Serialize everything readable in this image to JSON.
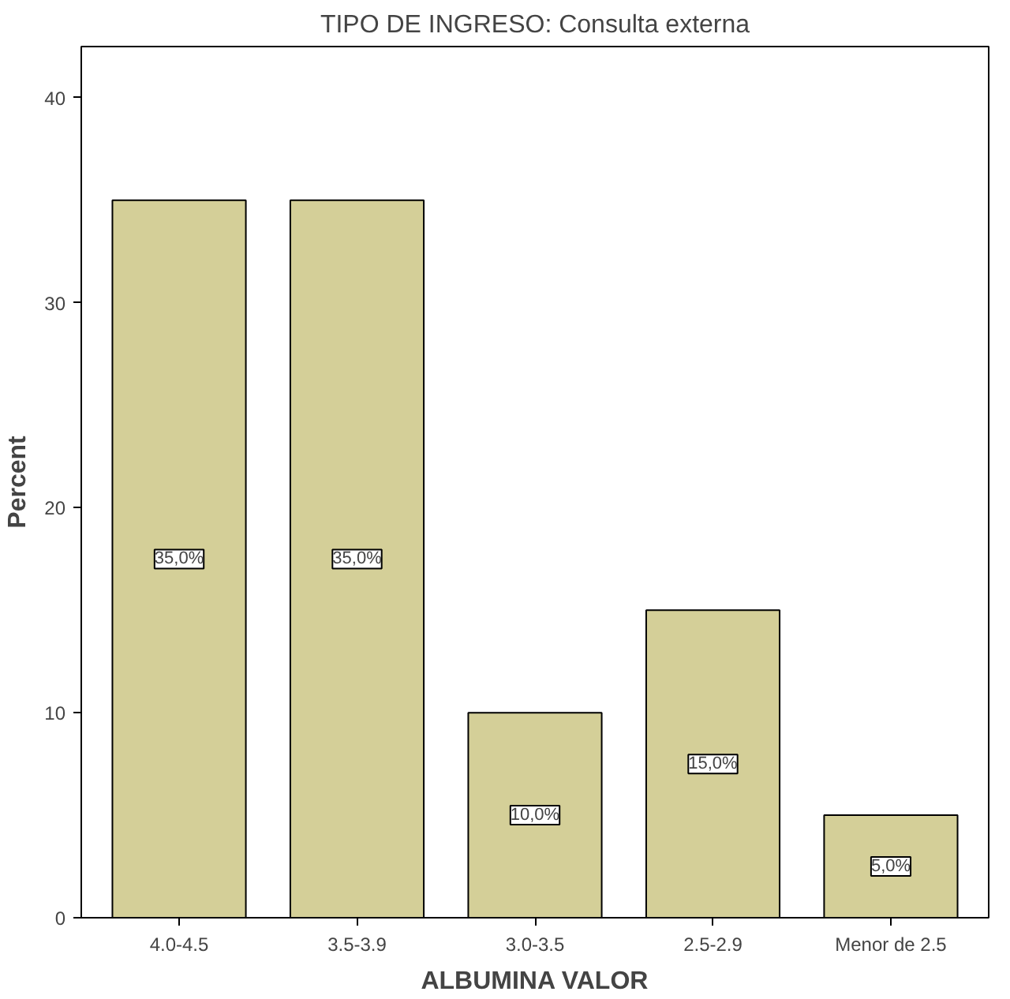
{
  "chart_data": {
    "type": "bar",
    "title": "TIPO DE INGRESO: Consulta externa",
    "xlabel": "ALBUMINA VALOR",
    "ylabel": "Percent",
    "categories": [
      "4.0-4.5",
      "3.5-3.9",
      "3.0-3.5",
      "2.5-2.9",
      "Menor de 2.5"
    ],
    "values": [
      35,
      35,
      10,
      15,
      5
    ],
    "value_labels": [
      "35,0%",
      "35,0%",
      "10,0%",
      "15,0%",
      "5,0%"
    ],
    "color": "#d4cf98",
    "ylim": [
      0,
      42.5
    ],
    "yticks": [
      0,
      10,
      20,
      30,
      40
    ],
    "grid": false
  }
}
